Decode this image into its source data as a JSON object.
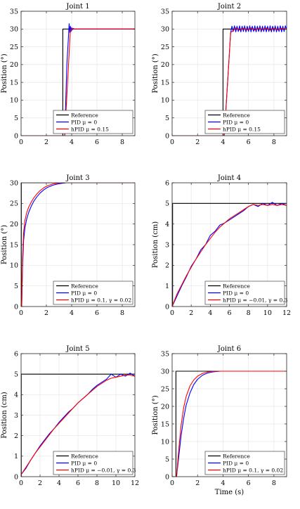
{
  "figure": {
    "legend_labels": {
      "reference": "Reference",
      "pid": "PID μ = 0"
    },
    "colors": {
      "reference": "#000000",
      "pid": "#0000ff",
      "hpid": "#ff0000",
      "grid": "#e6e6e6",
      "axis": "#262626"
    }
  },
  "chart_data": [
    {
      "type": "line",
      "title": "Joint 1",
      "ylabel": "Position (°)",
      "xlabel": "",
      "xlim": [
        0,
        9
      ],
      "ylim": [
        0,
        35
      ],
      "xticks": [
        "0",
        "2",
        "4",
        "6",
        "8"
      ],
      "yticks": [
        "0",
        "5",
        "10",
        "15",
        "20",
        "25",
        "30",
        "35"
      ],
      "grid": true,
      "legend": "bottom-right",
      "series": [
        {
          "name": "Reference",
          "x": [
            0,
            3.3,
            3.3,
            9
          ],
          "y": [
            0,
            0,
            30,
            30
          ]
        },
        {
          "name": "PID μ = 0",
          "x": [
            0,
            3.45,
            3.62,
            3.75,
            3.8,
            3.85,
            3.9,
            3.95,
            4.0,
            4.05,
            4.1,
            4.2,
            9
          ],
          "y": [
            0,
            0,
            20,
            28,
            31.5,
            29,
            30.8,
            29.3,
            30.4,
            29.7,
            30.2,
            30,
            30
          ]
        },
        {
          "name": "hPID μ = 0.15",
          "x": [
            0,
            3.45,
            3.9,
            4.0,
            9
          ],
          "y": [
            0,
            0,
            29.8,
            30,
            30
          ]
        }
      ]
    },
    {
      "type": "line",
      "title": "Joint 2",
      "ylabel": "Position (°)",
      "xlabel": "",
      "xlim": [
        0,
        9
      ],
      "ylim": [
        0,
        35
      ],
      "xticks": [
        "0",
        "2",
        "4",
        "6",
        "8"
      ],
      "yticks": [
        "0",
        "5",
        "10",
        "15",
        "20",
        "25",
        "30",
        "35"
      ],
      "grid": true,
      "legend": "bottom-right",
      "series": [
        {
          "name": "Reference",
          "x": [
            0,
            4.0,
            4.0,
            9
          ],
          "y": [
            0,
            0,
            30,
            30
          ]
        },
        {
          "name": "PID μ = 0",
          "x": [
            0,
            4.1,
            4.6,
            4.7,
            4.8,
            4.9,
            5.0,
            5.1,
            5.2,
            5.3,
            5.4,
            5.5,
            5.6,
            5.7,
            5.8,
            5.9,
            6.0,
            6.1,
            6.2,
            6.3,
            6.4,
            6.5,
            6.6,
            6.7,
            6.8,
            6.9,
            7.0,
            7.1,
            7.2,
            7.3,
            7.4,
            7.5,
            7.6,
            7.7,
            7.8,
            7.9,
            8.0,
            8.1,
            8.2,
            8.3,
            8.4,
            8.5,
            8.6,
            8.7,
            8.8,
            8.9,
            9.0
          ],
          "y": [
            0,
            0,
            29,
            30.8,
            29.3,
            30.9,
            29.2,
            30.8,
            29.3,
            30.9,
            29.2,
            30.8,
            29.3,
            30.9,
            29.2,
            30.8,
            29.3,
            30.9,
            29.2,
            30.8,
            29.3,
            30.9,
            29.2,
            30.8,
            29.3,
            30.9,
            29.2,
            30.8,
            29.3,
            30.9,
            29.2,
            30.8,
            29.3,
            30.9,
            29.2,
            30.8,
            29.3,
            30.9,
            29.2,
            30.8,
            29.3,
            30.9,
            29.2,
            30.8,
            29.3,
            30.9,
            29.8
          ]
        },
        {
          "name": "hPID μ = 0.15",
          "x": [
            0,
            4.1,
            4.6,
            4.8,
            5.0,
            5.3,
            5.6,
            5.9,
            6.2,
            6.5,
            6.8,
            7.1,
            7.4,
            7.7,
            8.0,
            8.3,
            8.6,
            9.0
          ],
          "y": [
            0,
            0,
            29,
            29.6,
            30.3,
            29.7,
            30.2,
            29.8,
            30.3,
            29.7,
            30.2,
            29.8,
            30.3,
            29.7,
            30.2,
            29.8,
            30.2,
            30
          ]
        }
      ]
    },
    {
      "type": "line",
      "title": "Joint 3",
      "ylabel": "Position (°)",
      "xlabel": "",
      "xlim": [
        0,
        9
      ],
      "ylim": [
        0,
        30
      ],
      "xticks": [
        "0",
        "2",
        "4",
        "6",
        "8"
      ],
      "yticks": [
        "0",
        "5",
        "10",
        "15",
        "20",
        "25",
        "30"
      ],
      "grid": true,
      "legend": "bottom-right",
      "series": [
        {
          "name": "Reference",
          "x": [
            0,
            0.02,
            0.02,
            9
          ],
          "y": [
            0,
            0,
            30,
            30
          ]
        },
        {
          "name": "PID μ = 0",
          "x": [
            0,
            0.05,
            0.12,
            0.2,
            0.3,
            0.45,
            0.6,
            0.8,
            1.0,
            1.25,
            1.5,
            1.8,
            2.1,
            2.5,
            2.9,
            3.3,
            3.6,
            9
          ],
          "y": [
            0,
            0,
            10,
            16,
            19,
            21.3,
            22.8,
            24.3,
            25.5,
            26.6,
            27.5,
            28.3,
            28.9,
            29.4,
            29.7,
            29.9,
            30,
            30
          ]
        },
        {
          "name": "hPID μ = 0.1, γ = 0.02",
          "x": [
            0,
            0.05,
            0.12,
            0.2,
            0.3,
            0.45,
            0.6,
            0.8,
            1.0,
            1.25,
            1.5,
            1.8,
            2.1,
            2.5,
            2.9,
            3.3,
            9
          ],
          "y": [
            0,
            0,
            12,
            18,
            20.8,
            22.8,
            24.1,
            25.3,
            26.3,
            27.3,
            28.1,
            28.8,
            29.3,
            29.7,
            29.9,
            30,
            30
          ]
        }
      ]
    },
    {
      "type": "line",
      "title": "Joint 4",
      "ylabel": "Position (cm)",
      "xlabel": "",
      "xlim": [
        0,
        12
      ],
      "ylim": [
        0,
        6
      ],
      "xticks": [
        "0",
        "2",
        "4",
        "6",
        "8",
        "10",
        "12"
      ],
      "yticks": [
        "0",
        "1",
        "2",
        "3",
        "4",
        "5",
        "6"
      ],
      "grid": true,
      "legend": "bottom-right",
      "series": [
        {
          "name": "Reference",
          "x": [
            0,
            0.05,
            0.05,
            12
          ],
          "y": [
            0,
            0,
            5,
            5
          ]
        },
        {
          "name": "PID μ = 0",
          "x": [
            0,
            0.5,
            1.0,
            1.5,
            2.0,
            2.5,
            3.0,
            3.5,
            4.0,
            4.5,
            5.0,
            5.5,
            6.0,
            6.5,
            7.0,
            7.5,
            8.0,
            8.5,
            9.0,
            9.5,
            10.0,
            10.5,
            11.0,
            11.5,
            12.0
          ],
          "y": [
            0,
            0.5,
            1.0,
            1.45,
            1.95,
            2.3,
            2.75,
            3.0,
            3.45,
            3.65,
            3.95,
            4.05,
            4.2,
            4.35,
            4.5,
            4.65,
            4.85,
            4.95,
            4.85,
            5.0,
            4.9,
            5.05,
            4.9,
            5.0,
            4.9
          ]
        },
        {
          "name": "hPID μ = −0.01, γ = 0.3",
          "x": [
            0,
            0.5,
            1.0,
            1.5,
            2.0,
            2.5,
            3.0,
            3.5,
            4.0,
            4.5,
            5.0,
            5.5,
            6.0,
            6.5,
            7.0,
            7.5,
            8.0,
            8.5,
            9.0,
            9.5,
            10.0,
            10.5,
            11.0,
            11.5,
            12.0
          ],
          "y": [
            0,
            0.6,
            1.05,
            1.5,
            1.9,
            2.3,
            2.65,
            3.0,
            3.3,
            3.6,
            3.85,
            4.05,
            4.25,
            4.4,
            4.55,
            4.7,
            4.85,
            4.95,
            4.9,
            4.95,
            4.9,
            4.95,
            4.9,
            4.95,
            4.9
          ]
        }
      ]
    },
    {
      "type": "line",
      "title": "Joint 5",
      "ylabel": "Position (cm)",
      "xlabel": "",
      "xlim": [
        0,
        12
      ],
      "ylim": [
        0,
        6
      ],
      "xticks": [
        "0",
        "2",
        "4",
        "6",
        "8",
        "10",
        "12"
      ],
      "yticks": [
        "0",
        "1",
        "2",
        "3",
        "4",
        "5",
        "6"
      ],
      "grid": true,
      "legend": "bottom-right",
      "series": [
        {
          "name": "Reference",
          "x": [
            0,
            0.02,
            0.02,
            12
          ],
          "y": [
            0,
            0,
            5,
            5
          ]
        },
        {
          "name": "PID μ = 0",
          "x": [
            0,
            0.5,
            1.0,
            1.5,
            2.0,
            2.5,
            3.0,
            3.5,
            4.0,
            4.5,
            5.0,
            5.5,
            6.0,
            6.5,
            7.0,
            7.5,
            8.0,
            8.5,
            9.0,
            9.5,
            10.0,
            10.5,
            11.0,
            11.5,
            12.0
          ],
          "y": [
            0.1,
            0.4,
            0.8,
            1.15,
            1.5,
            1.8,
            2.1,
            2.35,
            2.65,
            2.9,
            3.15,
            3.35,
            3.6,
            3.8,
            4.0,
            4.25,
            4.45,
            4.6,
            4.75,
            5.0,
            4.85,
            5.0,
            4.9,
            5.05,
            4.9
          ]
        },
        {
          "name": "hPID μ = −0.01, γ = 0.3",
          "x": [
            0,
            0.5,
            1.0,
            1.5,
            2.0,
            2.5,
            3.0,
            3.5,
            4.0,
            4.5,
            5.0,
            5.5,
            6.0,
            6.5,
            7.0,
            7.5,
            8.0,
            8.5,
            9.0,
            9.5,
            10.0,
            10.5,
            11.0,
            11.5,
            12.0
          ],
          "y": [
            0.1,
            0.45,
            0.8,
            1.15,
            1.45,
            1.75,
            2.05,
            2.35,
            2.6,
            2.85,
            3.1,
            3.35,
            3.6,
            3.8,
            4.0,
            4.2,
            4.4,
            4.55,
            4.7,
            4.8,
            4.85,
            4.9,
            4.95,
            4.95,
            4.9
          ]
        }
      ]
    },
    {
      "type": "line",
      "title": "Joint 6",
      "ylabel": "Position (°)",
      "xlabel": "Time (s)",
      "xlim": [
        0,
        9
      ],
      "ylim": [
        0,
        35
      ],
      "xticks": [
        "0",
        "2",
        "4",
        "6",
        "8"
      ],
      "yticks": [
        "0",
        "5",
        "10",
        "15",
        "20",
        "25",
        "30",
        "35"
      ],
      "grid": true,
      "legend": "bottom-right",
      "series": [
        {
          "name": "Reference",
          "x": [
            0,
            0.3,
            0.3,
            9
          ],
          "y": [
            0,
            0,
            30,
            30
          ]
        },
        {
          "name": "PID μ = 0",
          "x": [
            0,
            0.35,
            0.5,
            0.7,
            0.9,
            1.1,
            1.4,
            1.7,
            2.0,
            2.4,
            2.8,
            3.2,
            3.8,
            4.5,
            9
          ],
          "y": [
            0,
            0,
            5,
            11.5,
            16.5,
            20.3,
            23.8,
            26.2,
            27.7,
            28.9,
            29.5,
            29.8,
            30,
            30,
            30
          ]
        },
        {
          "name": "hPID μ = 0.1, γ = 0.02",
          "x": [
            0,
            0.35,
            0.5,
            0.7,
            0.9,
            1.1,
            1.4,
            1.7,
            2.0,
            2.4,
            2.8,
            3.2,
            3.8,
            9
          ],
          "y": [
            0,
            0,
            7,
            14.5,
            19.5,
            22.8,
            25.8,
            27.5,
            28.6,
            29.4,
            29.8,
            29.95,
            30,
            30
          ]
        }
      ]
    }
  ]
}
